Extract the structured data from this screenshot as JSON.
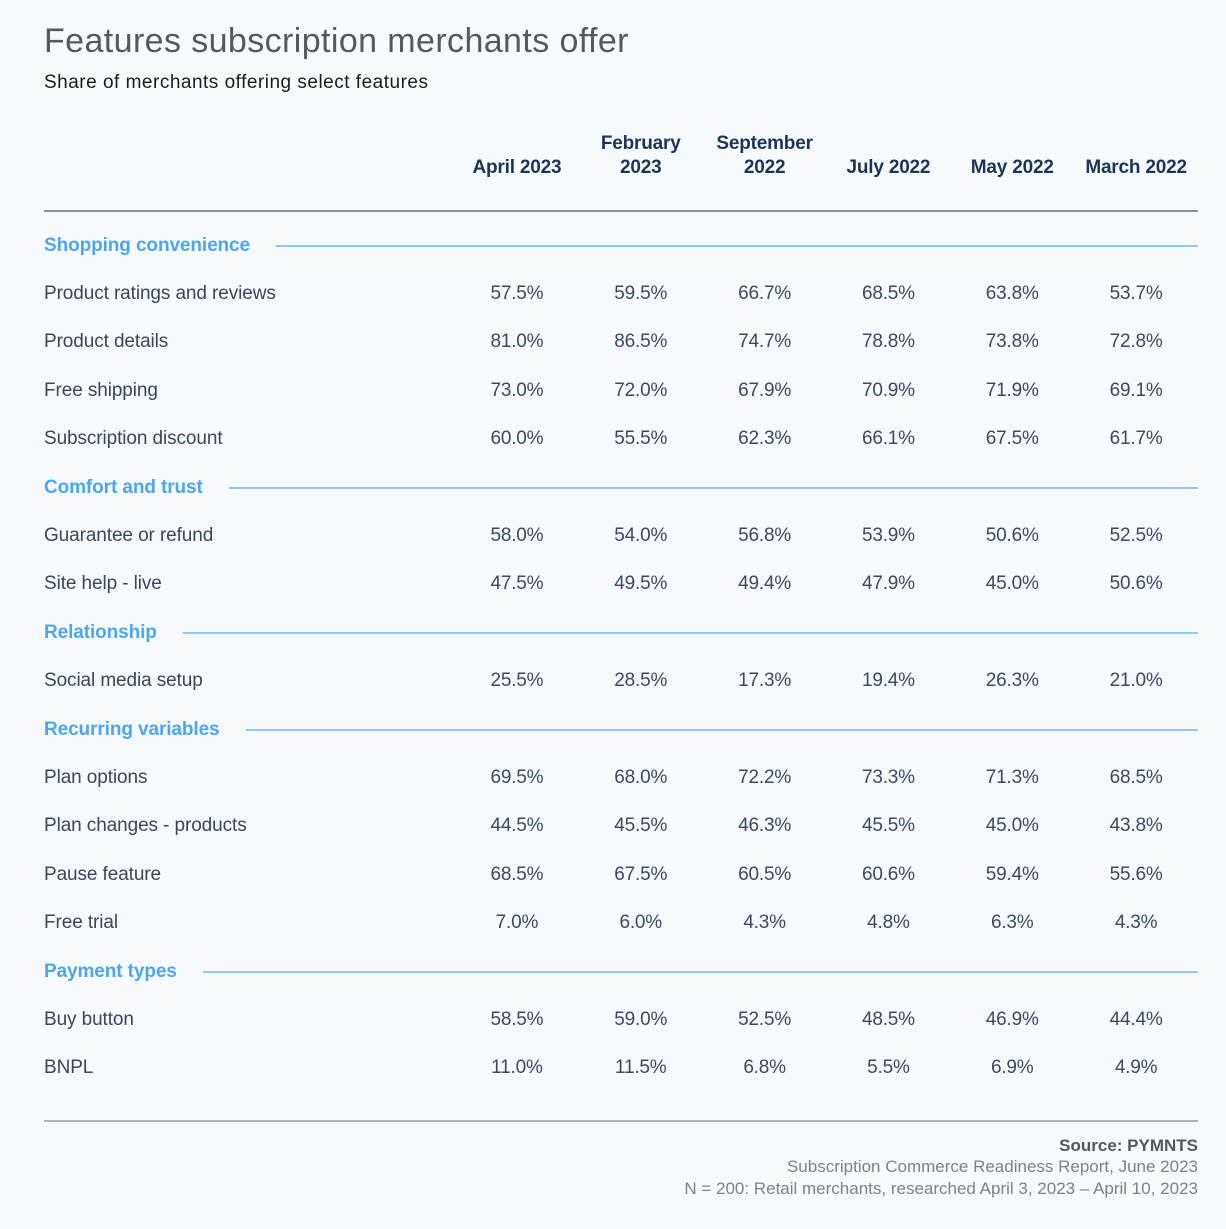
{
  "page": {
    "title": "Features subscription merchants offer",
    "subtitle": "Share of merchants offering select features"
  },
  "chart_data": {
    "type": "table",
    "title": "Features subscription merchants offer",
    "subtitle": "Share of merchants offering select features",
    "columns": [
      "April 2023",
      "February 2023",
      "September 2022",
      "July 2022",
      "May 2022",
      "March 2022"
    ],
    "sections": [
      {
        "name": "Shopping convenience",
        "rows": [
          {
            "label": "Product ratings and reviews",
            "values": [
              "57.5%",
              "59.5%",
              "66.7%",
              "68.5%",
              "63.8%",
              "53.7%"
            ]
          },
          {
            "label": "Product details",
            "values": [
              "81.0%",
              "86.5%",
              "74.7%",
              "78.8%",
              "73.8%",
              "72.8%"
            ]
          },
          {
            "label": "Free shipping",
            "values": [
              "73.0%",
              "72.0%",
              "67.9%",
              "70.9%",
              "71.9%",
              "69.1%"
            ]
          },
          {
            "label": "Subscription discount",
            "values": [
              "60.0%",
              "55.5%",
              "62.3%",
              "66.1%",
              "67.5%",
              "61.7%"
            ]
          }
        ]
      },
      {
        "name": "Comfort and trust",
        "rows": [
          {
            "label": "Guarantee or refund",
            "values": [
              "58.0%",
              "54.0%",
              "56.8%",
              "53.9%",
              "50.6%",
              "52.5%"
            ]
          },
          {
            "label": "Site help - live",
            "values": [
              "47.5%",
              "49.5%",
              "49.4%",
              "47.9%",
              "45.0%",
              "50.6%"
            ]
          }
        ]
      },
      {
        "name": "Relationship",
        "rows": [
          {
            "label": "Social media setup",
            "values": [
              "25.5%",
              "28.5%",
              "17.3%",
              "19.4%",
              "26.3%",
              "21.0%"
            ]
          }
        ]
      },
      {
        "name": "Recurring variables",
        "rows": [
          {
            "label": "Plan options",
            "values": [
              "69.5%",
              "68.0%",
              "72.2%",
              "73.3%",
              "71.3%",
              "68.5%"
            ]
          },
          {
            "label": "Plan changes - products",
            "values": [
              "44.5%",
              "45.5%",
              "46.3%",
              "45.5%",
              "45.0%",
              "43.8%"
            ]
          },
          {
            "label": "Pause feature",
            "values": [
              "68.5%",
              "67.5%",
              "60.5%",
              "60.6%",
              "59.4%",
              "55.6%"
            ]
          },
          {
            "label": "Free trial",
            "values": [
              "7.0%",
              "6.0%",
              "4.3%",
              "4.8%",
              "6.3%",
              "4.3%"
            ]
          }
        ]
      },
      {
        "name": "Payment types",
        "rows": [
          {
            "label": "Buy button",
            "values": [
              "58.5%",
              "59.0%",
              "52.5%",
              "48.5%",
              "46.9%",
              "44.4%"
            ]
          },
          {
            "label": "BNPL",
            "values": [
              "11.0%",
              "11.5%",
              "6.8%",
              "5.5%",
              "6.9%",
              "4.9%"
            ]
          }
        ]
      }
    ]
  },
  "footer": {
    "source": "Source: PYMNTS",
    "line1": "Subscription Commerce Readiness Report, June 2023",
    "line2": "N = 200: Retail merchants, researched April 3, 2023 – April 10, 2023"
  },
  "colors": {
    "background": "#f7fafd",
    "title_text": "#54595e",
    "subtitle_text": "#1a1c1f",
    "column_header_text": "#1d3456",
    "value_text": "#3c4960",
    "section_header_text": "#4da6ee",
    "section_divider_line": "#90c9f3",
    "header_rule": "#8e9196",
    "bottom_rule": "#b0b3b7",
    "footer_note_text": "#7e8286"
  }
}
